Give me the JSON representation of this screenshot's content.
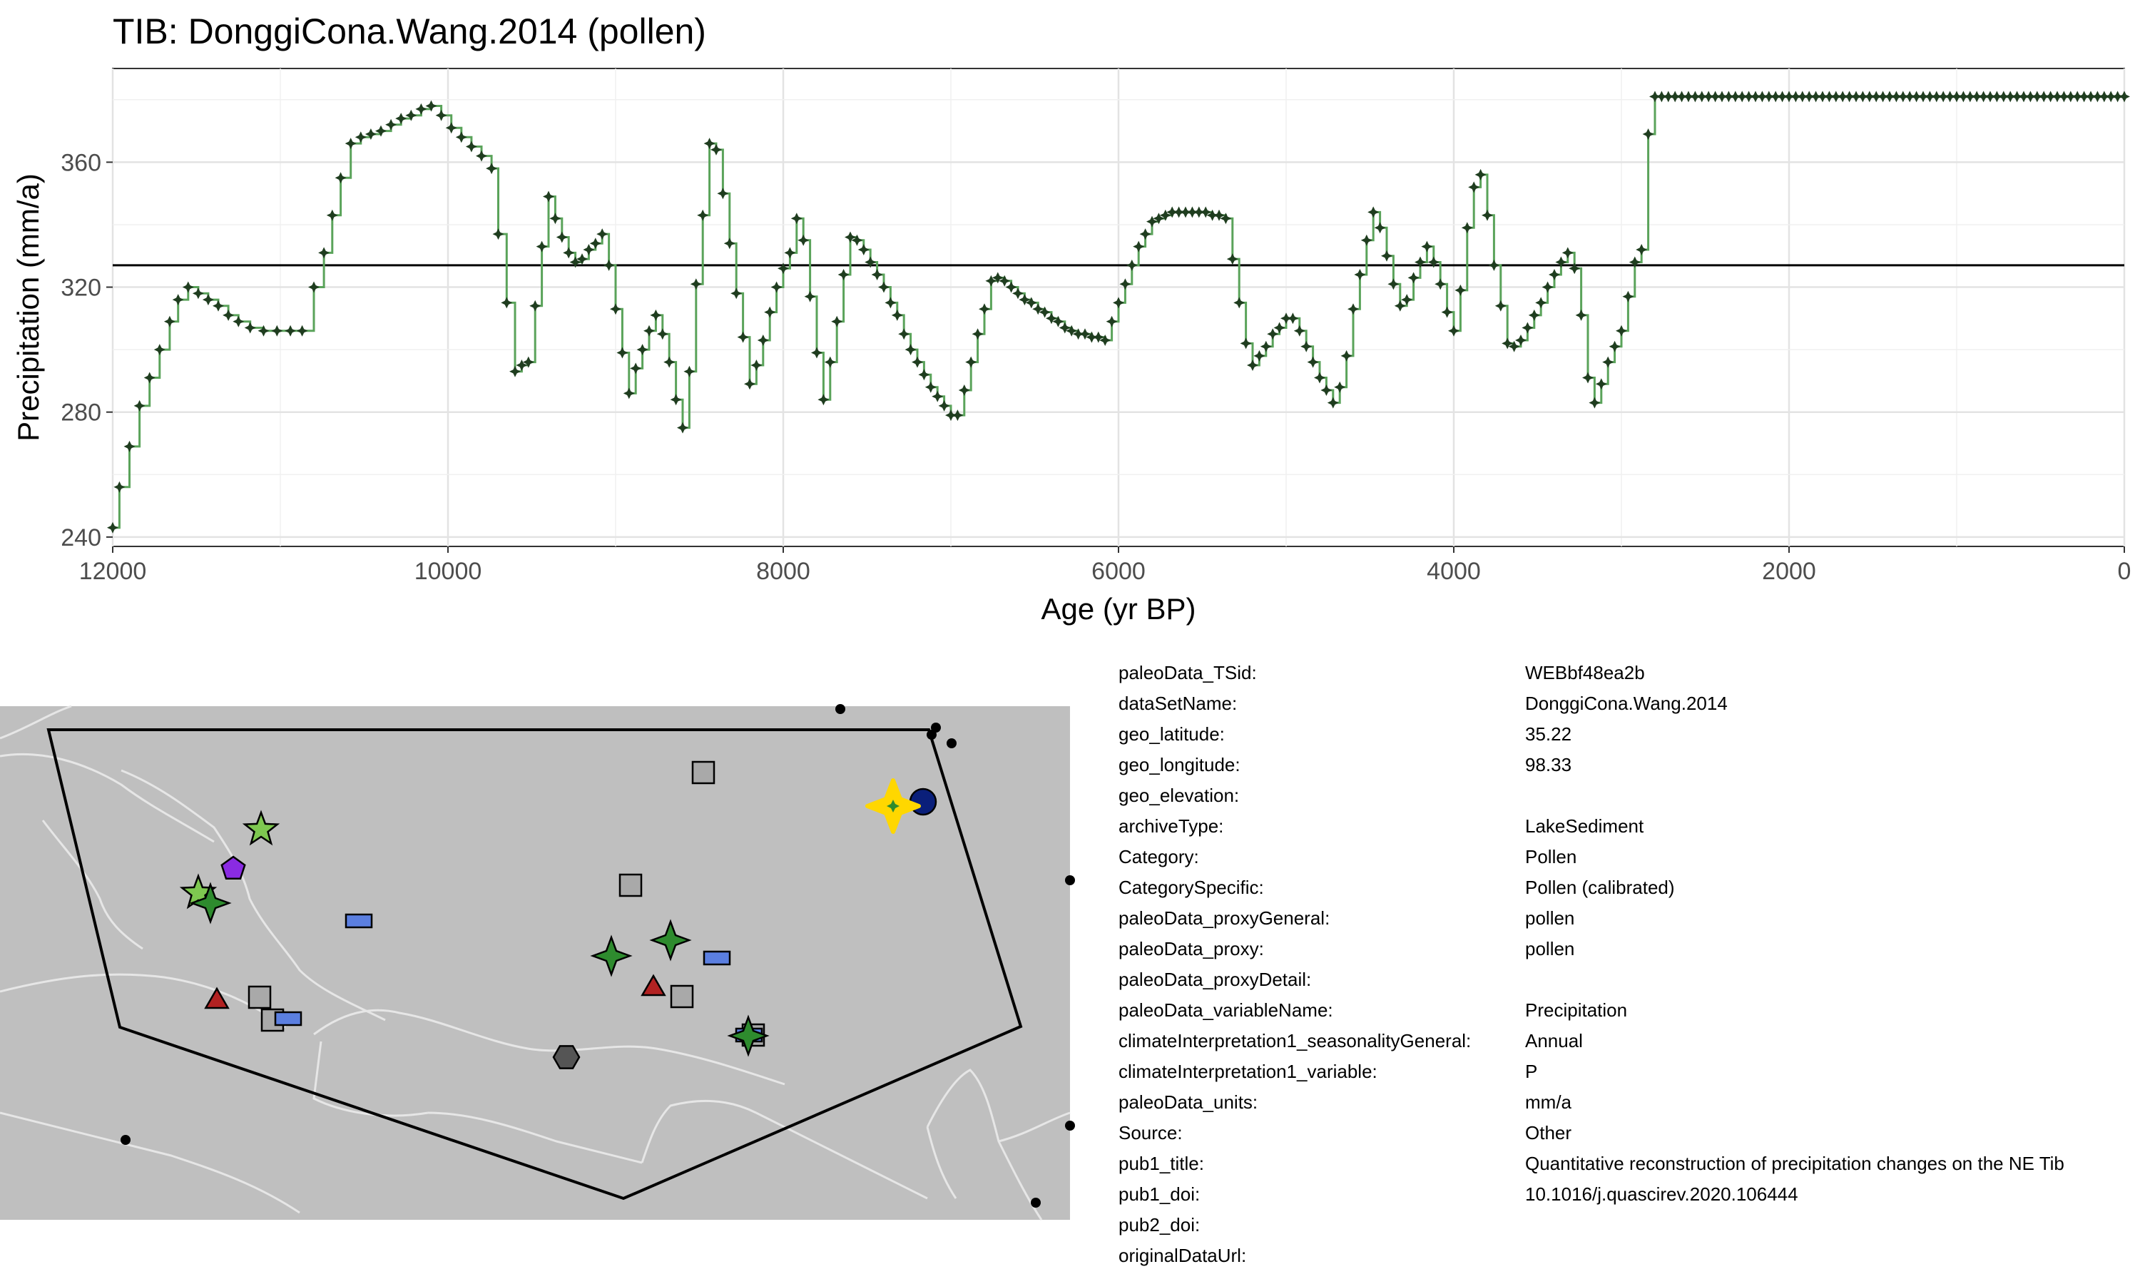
{
  "title": "TIB: DonggiCona.Wang.2014 (pollen)",
  "chart_data": {
    "type": "line",
    "step": true,
    "xlabel": "Age (yr BP)",
    "ylabel": "Precipitation (mm/a)",
    "xlim": [
      12000,
      0
    ],
    "ylim": [
      237,
      390
    ],
    "x_reversed": true,
    "x_ticks": [
      12000,
      10000,
      8000,
      6000,
      4000,
      2000,
      0
    ],
    "y_ticks": [
      240,
      280,
      320,
      360
    ],
    "grid": true,
    "mean_line": 327,
    "line_color": "#5aa35a",
    "marker_color": "#1f3d1f",
    "points": [
      [
        12000,
        243
      ],
      [
        11960,
        256
      ],
      [
        11900,
        269
      ],
      [
        11840,
        282
      ],
      [
        11780,
        291
      ],
      [
        11720,
        300
      ],
      [
        11660,
        309
      ],
      [
        11610,
        316
      ],
      [
        11550,
        320
      ],
      [
        11490,
        318
      ],
      [
        11430,
        316
      ],
      [
        11370,
        314
      ],
      [
        11310,
        311
      ],
      [
        11250,
        309
      ],
      [
        11180,
        307
      ],
      [
        11100,
        306
      ],
      [
        11020,
        306
      ],
      [
        10940,
        306
      ],
      [
        10870,
        306
      ],
      [
        10800,
        320
      ],
      [
        10740,
        331
      ],
      [
        10690,
        343
      ],
      [
        10640,
        355
      ],
      [
        10580,
        366
      ],
      [
        10520,
        368
      ],
      [
        10460,
        369
      ],
      [
        10400,
        370
      ],
      [
        10340,
        372
      ],
      [
        10280,
        374
      ],
      [
        10220,
        375
      ],
      [
        10160,
        377
      ],
      [
        10100,
        378
      ],
      [
        10040,
        375
      ],
      [
        9980,
        371
      ],
      [
        9920,
        368
      ],
      [
        9860,
        365
      ],
      [
        9800,
        362
      ],
      [
        9740,
        358
      ],
      [
        9700,
        337
      ],
      [
        9650,
        315
      ],
      [
        9600,
        293
      ],
      [
        9560,
        295
      ],
      [
        9520,
        296
      ],
      [
        9480,
        314
      ],
      [
        9440,
        333
      ],
      [
        9400,
        349
      ],
      [
        9360,
        342
      ],
      [
        9320,
        336
      ],
      [
        9280,
        331
      ],
      [
        9240,
        328
      ],
      [
        9200,
        329
      ],
      [
        9160,
        332
      ],
      [
        9120,
        334
      ],
      [
        9080,
        337
      ],
      [
        9040,
        327
      ],
      [
        9000,
        313
      ],
      [
        8960,
        299
      ],
      [
        8920,
        286
      ],
      [
        8880,
        294
      ],
      [
        8840,
        300
      ],
      [
        8800,
        306
      ],
      [
        8760,
        311
      ],
      [
        8720,
        305
      ],
      [
        8680,
        296
      ],
      [
        8640,
        284
      ],
      [
        8600,
        275
      ],
      [
        8560,
        293
      ],
      [
        8520,
        321
      ],
      [
        8480,
        343
      ],
      [
        8440,
        366
      ],
      [
        8400,
        364
      ],
      [
        8360,
        350
      ],
      [
        8320,
        334
      ],
      [
        8280,
        318
      ],
      [
        8240,
        304
      ],
      [
        8200,
        289
      ],
      [
        8160,
        295
      ],
      [
        8120,
        303
      ],
      [
        8080,
        312
      ],
      [
        8040,
        320
      ],
      [
        8000,
        326
      ],
      [
        7960,
        331
      ],
      [
        7920,
        342
      ],
      [
        7880,
        335
      ],
      [
        7840,
        317
      ],
      [
        7800,
        299
      ],
      [
        7760,
        284
      ],
      [
        7720,
        296
      ],
      [
        7680,
        309
      ],
      [
        7640,
        324
      ],
      [
        7600,
        336
      ],
      [
        7560,
        335
      ],
      [
        7520,
        332
      ],
      [
        7480,
        328
      ],
      [
        7440,
        324
      ],
      [
        7400,
        320
      ],
      [
        7360,
        315
      ],
      [
        7320,
        311
      ],
      [
        7280,
        305
      ],
      [
        7240,
        300
      ],
      [
        7200,
        296
      ],
      [
        7160,
        292
      ],
      [
        7120,
        288
      ],
      [
        7080,
        285
      ],
      [
        7040,
        282
      ],
      [
        7000,
        279
      ],
      [
        6960,
        279
      ],
      [
        6920,
        287
      ],
      [
        6880,
        296
      ],
      [
        6840,
        305
      ],
      [
        6800,
        313
      ],
      [
        6760,
        322
      ],
      [
        6720,
        323
      ],
      [
        6680,
        322
      ],
      [
        6640,
        320
      ],
      [
        6600,
        318
      ],
      [
        6560,
        316
      ],
      [
        6520,
        315
      ],
      [
        6480,
        313
      ],
      [
        6440,
        312
      ],
      [
        6400,
        310
      ],
      [
        6360,
        309
      ],
      [
        6320,
        307
      ],
      [
        6280,
        306
      ],
      [
        6240,
        305
      ],
      [
        6200,
        305
      ],
      [
        6160,
        304
      ],
      [
        6120,
        304
      ],
      [
        6080,
        303
      ],
      [
        6040,
        309
      ],
      [
        6000,
        315
      ],
      [
        5960,
        321
      ],
      [
        5920,
        327
      ],
      [
        5880,
        333
      ],
      [
        5840,
        337
      ],
      [
        5800,
        341
      ],
      [
        5760,
        342
      ],
      [
        5720,
        343
      ],
      [
        5680,
        344
      ],
      [
        5640,
        344
      ],
      [
        5600,
        344
      ],
      [
        5560,
        344
      ],
      [
        5520,
        344
      ],
      [
        5480,
        344
      ],
      [
        5440,
        343
      ],
      [
        5400,
        343
      ],
      [
        5360,
        342
      ],
      [
        5320,
        329
      ],
      [
        5280,
        315
      ],
      [
        5240,
        302
      ],
      [
        5200,
        295
      ],
      [
        5160,
        298
      ],
      [
        5120,
        301
      ],
      [
        5080,
        305
      ],
      [
        5040,
        307
      ],
      [
        5000,
        310
      ],
      [
        4960,
        310
      ],
      [
        4920,
        306
      ],
      [
        4880,
        301
      ],
      [
        4840,
        296
      ],
      [
        4800,
        291
      ],
      [
        4760,
        287
      ],
      [
        4720,
        283
      ],
      [
        4680,
        288
      ],
      [
        4640,
        298
      ],
      [
        4600,
        313
      ],
      [
        4560,
        324
      ],
      [
        4520,
        335
      ],
      [
        4480,
        344
      ],
      [
        4440,
        339
      ],
      [
        4400,
        330
      ],
      [
        4360,
        321
      ],
      [
        4320,
        314
      ],
      [
        4280,
        316
      ],
      [
        4240,
        323
      ],
      [
        4200,
        328
      ],
      [
        4160,
        333
      ],
      [
        4120,
        328
      ],
      [
        4080,
        321
      ],
      [
        4040,
        312
      ],
      [
        4000,
        306
      ],
      [
        3960,
        319
      ],
      [
        3920,
        339
      ],
      [
        3880,
        352
      ],
      [
        3840,
        356
      ],
      [
        3800,
        343
      ],
      [
        3760,
        327
      ],
      [
        3720,
        314
      ],
      [
        3680,
        302
      ],
      [
        3640,
        301
      ],
      [
        3600,
        303
      ],
      [
        3560,
        307
      ],
      [
        3520,
        311
      ],
      [
        3480,
        315
      ],
      [
        3440,
        320
      ],
      [
        3400,
        324
      ],
      [
        3360,
        328
      ],
      [
        3320,
        331
      ],
      [
        3280,
        326
      ],
      [
        3240,
        311
      ],
      [
        3200,
        291
      ],
      [
        3160,
        283
      ],
      [
        3120,
        289
      ],
      [
        3080,
        296
      ],
      [
        3040,
        301
      ],
      [
        3000,
        306
      ],
      [
        2960,
        317
      ],
      [
        2920,
        328
      ],
      [
        2880,
        332
      ],
      [
        2840,
        369
      ],
      [
        2800,
        381
      ],
      [
        2760,
        381
      ],
      [
        2720,
        381
      ],
      [
        2680,
        381
      ],
      [
        2640,
        381
      ],
      [
        2600,
        381
      ],
      [
        2560,
        381
      ],
      [
        2520,
        381
      ],
      [
        2480,
        381
      ],
      [
        2440,
        381
      ],
      [
        2400,
        381
      ],
      [
        2360,
        381
      ],
      [
        2320,
        381
      ],
      [
        2280,
        381
      ],
      [
        2240,
        381
      ],
      [
        2200,
        381
      ],
      [
        2160,
        381
      ],
      [
        2120,
        381
      ],
      [
        2080,
        381
      ],
      [
        2040,
        381
      ],
      [
        2000,
        381
      ],
      [
        1960,
        381
      ],
      [
        1920,
        381
      ],
      [
        1880,
        381
      ],
      [
        1840,
        381
      ],
      [
        1800,
        381
      ],
      [
        1760,
        381
      ],
      [
        1720,
        381
      ],
      [
        1680,
        381
      ],
      [
        1640,
        381
      ],
      [
        1600,
        381
      ],
      [
        1560,
        381
      ],
      [
        1520,
        381
      ],
      [
        1480,
        381
      ],
      [
        1440,
        381
      ],
      [
        1400,
        381
      ],
      [
        1360,
        381
      ],
      [
        1320,
        381
      ],
      [
        1280,
        381
      ],
      [
        1240,
        381
      ],
      [
        1200,
        381
      ],
      [
        1160,
        381
      ],
      [
        1120,
        381
      ],
      [
        1080,
        381
      ],
      [
        1040,
        381
      ],
      [
        1000,
        381
      ],
      [
        960,
        381
      ],
      [
        920,
        381
      ],
      [
        880,
        381
      ],
      [
        840,
        381
      ],
      [
        800,
        381
      ],
      [
        760,
        381
      ],
      [
        720,
        381
      ],
      [
        680,
        381
      ],
      [
        640,
        381
      ],
      [
        600,
        381
      ],
      [
        560,
        381
      ],
      [
        520,
        381
      ],
      [
        480,
        381
      ],
      [
        440,
        381
      ],
      [
        400,
        381
      ],
      [
        360,
        381
      ],
      [
        320,
        381
      ],
      [
        280,
        381
      ],
      [
        240,
        381
      ],
      [
        200,
        381
      ],
      [
        160,
        381
      ],
      [
        120,
        381
      ],
      [
        80,
        381
      ],
      [
        40,
        381
      ],
      [
        0,
        381
      ]
    ]
  },
  "map": {
    "background_color": "#bfbfbf",
    "border_color": "#e6e6e6",
    "highlight_color": "#ffd700",
    "symbols": [
      {
        "kind": "star",
        "color": "#7ec850"
      },
      {
        "kind": "star",
        "color": "#7ec850"
      },
      {
        "kind": "pentagon",
        "color": "#8a2be2"
      },
      {
        "kind": "diamond-star",
        "color": "#2e8b2e"
      },
      {
        "kind": "diamond-star",
        "color": "#2e8b2e"
      },
      {
        "kind": "diamond-star",
        "color": "#2e8b2e"
      },
      {
        "kind": "diamond-star",
        "color": "#2e8b2e"
      },
      {
        "kind": "square",
        "color": "#a9a9a9"
      },
      {
        "kind": "rectangle",
        "color": "#5b7fe0"
      },
      {
        "kind": "triangle",
        "color": "#b22222"
      },
      {
        "kind": "hexagon",
        "color": "#555555"
      },
      {
        "kind": "circle",
        "color": "#0a1f7a"
      }
    ]
  },
  "metadata": [
    {
      "key": "paleoData_TSid:",
      "value": "WEBbf48ea2b"
    },
    {
      "key": "dataSetName:",
      "value": "DonggiCona.Wang.2014"
    },
    {
      "key": "geo_latitude:",
      "value": "35.22"
    },
    {
      "key": "geo_longitude:",
      "value": "98.33"
    },
    {
      "key": "geo_elevation:",
      "value": ""
    },
    {
      "key": "archiveType:",
      "value": "LakeSediment"
    },
    {
      "key": "Category:",
      "value": "Pollen"
    },
    {
      "key": "CategorySpecific:",
      "value": "Pollen (calibrated)"
    },
    {
      "key": "paleoData_proxyGeneral:",
      "value": "pollen"
    },
    {
      "key": "paleoData_proxy:",
      "value": "pollen"
    },
    {
      "key": "paleoData_proxyDetail:",
      "value": ""
    },
    {
      "key": "paleoData_variableName:",
      "value": "Precipitation"
    },
    {
      "key": "climateInterpretation1_seasonalityGeneral:",
      "value": "Annual"
    },
    {
      "key": "climateInterpretation1_variable:",
      "value": "P"
    },
    {
      "key": "paleoData_units:",
      "value": "mm/a"
    },
    {
      "key": "Source:",
      "value": "Other"
    },
    {
      "key": "pub1_title:",
      "value": "Quantitative reconstruction of precipitation changes on the NE Tib"
    },
    {
      "key": "pub1_doi:",
      "value": "10.1016/j.quascirev.2020.106444"
    },
    {
      "key": "pub2_doi:",
      "value": ""
    },
    {
      "key": "originalDataUrl:",
      "value": ""
    }
  ]
}
